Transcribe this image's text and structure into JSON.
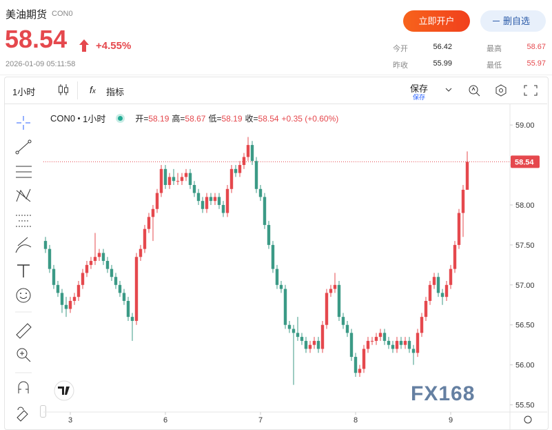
{
  "header": {
    "title": "美油期货",
    "code": "CON0",
    "price": 58.54,
    "change": "+4.55%",
    "time": "2026-01-09 05:11:58"
  },
  "buttons": {
    "open_account": "立即开户",
    "watchlist": "删自选"
  },
  "stats": [
    {
      "label": "今开",
      "value": 56.42
    },
    {
      "label": "最高",
      "value": 58.67
    },
    {
      "label": "昨收",
      "value": 55.99
    },
    {
      "label": "最低",
      "value": 55.97
    }
  ],
  "toolbar": {
    "interval": "1小时",
    "indicators": "指标",
    "save": "保存",
    "save_sub": "保存"
  },
  "watermark": "FX168",
  "chart_data": {
    "type": "candlestick",
    "symbol": "CON0",
    "interval": "1小时",
    "ohlc_legend": [
      {
        "label": "开=",
        "value": 58.19
      },
      {
        "label": "高=",
        "value": 58.67
      },
      {
        "label": "低=",
        "value": 58.19
      },
      {
        "label": "收=",
        "value": 58.54
      }
    ],
    "change_text": "+0.35 (+0.60%)",
    "last_price": 58.54,
    "up_color": "#e5484d",
    "down_color": "#3b9a86",
    "ylim": [
      55.41,
      59.26
    ],
    "yticks": [
      {
        "value": 55.5,
        "label": "55.50"
      },
      {
        "value": 56,
        "label": "56.00"
      },
      {
        "value": 56.5,
        "label": "56.50"
      },
      {
        "value": 57,
        "label": "57.00"
      },
      {
        "value": 57.5,
        "label": "57.50"
      },
      {
        "value": 58,
        "label": "58.00"
      },
      {
        "value": 58.5,
        "label": "58.50"
      },
      {
        "value": 59,
        "label": "59.00"
      }
    ],
    "categories": [
      null,
      null,
      null,
      null,
      null,
      null,
      "3",
      null,
      null,
      null,
      null,
      null,
      null,
      null,
      null,
      null,
      null,
      null,
      null,
      null,
      null,
      null,
      null,
      null,
      null,
      null,
      null,
      null,
      null,
      "6",
      null,
      null,
      null,
      null,
      null,
      null,
      null,
      null,
      null,
      null,
      null,
      null,
      null,
      null,
      null,
      null,
      null,
      null,
      null,
      null,
      null,
      null,
      "7",
      null,
      null,
      null,
      null,
      null,
      null,
      null,
      null,
      null,
      null,
      null,
      null,
      null,
      null,
      null,
      null,
      null,
      null,
      null,
      null,
      null,
      null,
      "8",
      null,
      null,
      null,
      null,
      null,
      null,
      null,
      null,
      null,
      null,
      null,
      null,
      null,
      null,
      null,
      null,
      null,
      null,
      null,
      null,
      null,
      null,
      "9",
      null,
      null,
      null,
      null
    ],
    "ohlc": [
      [
        57.55,
        57.6,
        57.4,
        57.45
      ],
      [
        57.45,
        57.5,
        57.15,
        57.2
      ],
      [
        57.2,
        57.25,
        56.95,
        57.0
      ],
      [
        57.0,
        57.05,
        56.85,
        56.9
      ],
      [
        56.9,
        56.95,
        56.65,
        56.75
      ],
      [
        56.75,
        56.85,
        56.6,
        56.7
      ],
      [
        56.7,
        56.85,
        56.65,
        56.8
      ],
      [
        56.8,
        56.9,
        56.75,
        56.85
      ],
      [
        56.85,
        57.05,
        56.8,
        57.0
      ],
      [
        57.0,
        57.2,
        56.95,
        57.15
      ],
      [
        57.15,
        57.3,
        57.1,
        57.25
      ],
      [
        57.25,
        57.35,
        57.2,
        57.3
      ],
      [
        57.3,
        57.65,
        57.25,
        57.35
      ],
      [
        57.35,
        57.45,
        57.3,
        57.4
      ],
      [
        57.4,
        57.45,
        57.25,
        57.3
      ],
      [
        57.3,
        57.35,
        57.15,
        57.2
      ],
      [
        57.2,
        57.25,
        57.05,
        57.1
      ],
      [
        57.1,
        57.15,
        56.95,
        57.0
      ],
      [
        57.0,
        57.05,
        56.85,
        56.9
      ],
      [
        56.9,
        56.95,
        56.75,
        56.8
      ],
      [
        56.8,
        56.85,
        56.55,
        56.6
      ],
      [
        56.6,
        56.65,
        56.3,
        56.55
      ],
      [
        56.55,
        57.4,
        56.5,
        57.35
      ],
      [
        57.35,
        57.5,
        57.3,
        57.45
      ],
      [
        57.45,
        57.75,
        57.4,
        57.7
      ],
      [
        57.7,
        57.9,
        57.65,
        57.85
      ],
      [
        57.85,
        58.0,
        57.55,
        57.95
      ],
      [
        57.95,
        58.2,
        57.9,
        58.15
      ],
      [
        58.15,
        58.5,
        58.1,
        58.45
      ],
      [
        58.45,
        58.5,
        58.2,
        58.25
      ],
      [
        58.25,
        58.4,
        58.2,
        58.35
      ],
      [
        58.35,
        58.45,
        58.25,
        58.3
      ],
      [
        58.3,
        58.4,
        58.25,
        58.3
      ],
      [
        58.3,
        58.4,
        58.25,
        58.35
      ],
      [
        58.35,
        58.45,
        58.3,
        58.4
      ],
      [
        58.4,
        58.45,
        58.2,
        58.25
      ],
      [
        58.25,
        58.3,
        58.1,
        58.15
      ],
      [
        58.15,
        58.2,
        58.0,
        58.05
      ],
      [
        58.05,
        58.1,
        57.9,
        57.95
      ],
      [
        57.95,
        58.15,
        57.9,
        58.1
      ],
      [
        58.1,
        58.15,
        58.0,
        58.05
      ],
      [
        58.05,
        58.15,
        58.0,
        58.1
      ],
      [
        58.1,
        58.15,
        57.95,
        58.0
      ],
      [
        58.0,
        58.05,
        57.85,
        57.9
      ],
      [
        57.9,
        58.25,
        57.85,
        58.2
      ],
      [
        58.2,
        58.5,
        58.15,
        58.45
      ],
      [
        58.45,
        58.5,
        58.35,
        58.4
      ],
      [
        58.4,
        58.55,
        58.35,
        58.5
      ],
      [
        58.5,
        58.65,
        58.45,
        58.6
      ],
      [
        58.6,
        58.85,
        58.55,
        58.75
      ],
      [
        58.75,
        58.8,
        58.5,
        58.55
      ],
      [
        58.55,
        58.6,
        58.15,
        58.2
      ],
      [
        58.2,
        58.25,
        58.05,
        58.1
      ],
      [
        58.1,
        58.15,
        57.7,
        57.75
      ],
      [
        57.75,
        57.8,
        57.45,
        57.5
      ],
      [
        57.5,
        57.55,
        57.15,
        57.2
      ],
      [
        57.2,
        57.25,
        56.95,
        57.0
      ],
      [
        57.0,
        57.05,
        56.9,
        56.95
      ],
      [
        56.95,
        57.0,
        56.45,
        56.5
      ],
      [
        56.5,
        56.55,
        56.4,
        56.45
      ],
      [
        56.45,
        56.5,
        55.75,
        56.4
      ],
      [
        56.4,
        56.6,
        56.3,
        56.35
      ],
      [
        56.35,
        56.4,
        56.25,
        56.3
      ],
      [
        56.3,
        56.35,
        56.15,
        56.2
      ],
      [
        56.2,
        56.3,
        56.15,
        56.25
      ],
      [
        56.25,
        56.35,
        56.2,
        56.3
      ],
      [
        56.3,
        56.35,
        56.15,
        56.2
      ],
      [
        56.2,
        56.55,
        56.15,
        56.5
      ],
      [
        56.5,
        56.95,
        56.45,
        56.9
      ],
      [
        56.9,
        57.0,
        56.85,
        56.95
      ],
      [
        56.95,
        57.15,
        56.9,
        57.0
      ],
      [
        57.0,
        57.05,
        56.55,
        56.6
      ],
      [
        56.6,
        56.65,
        56.45,
        56.5
      ],
      [
        56.5,
        56.55,
        56.35,
        56.4
      ],
      [
        56.4,
        56.45,
        56.05,
        56.1
      ],
      [
        56.1,
        56.15,
        55.85,
        55.9
      ],
      [
        55.9,
        56.0,
        55.85,
        55.95
      ],
      [
        55.95,
        56.25,
        55.9,
        56.2
      ],
      [
        56.2,
        56.35,
        56.15,
        56.3
      ],
      [
        56.3,
        56.35,
        56.25,
        56.3
      ],
      [
        56.3,
        56.4,
        56.25,
        56.35
      ],
      [
        56.35,
        56.45,
        56.3,
        56.4
      ],
      [
        56.4,
        56.45,
        56.25,
        56.3
      ],
      [
        56.3,
        56.35,
        56.2,
        56.25
      ],
      [
        56.25,
        56.3,
        56.15,
        56.2
      ],
      [
        56.2,
        56.35,
        56.15,
        56.3
      ],
      [
        56.3,
        56.35,
        56.2,
        56.25
      ],
      [
        56.25,
        56.35,
        56.2,
        56.3
      ],
      [
        56.3,
        56.35,
        56.15,
        56.2
      ],
      [
        56.2,
        56.25,
        56.0,
        56.15
      ],
      [
        56.15,
        56.45,
        56.1,
        56.4
      ],
      [
        56.4,
        56.65,
        56.35,
        56.6
      ],
      [
        56.6,
        56.85,
        56.55,
        56.8
      ],
      [
        56.8,
        57.05,
        56.75,
        57.0
      ],
      [
        57.0,
        57.15,
        56.95,
        57.1
      ],
      [
        57.1,
        57.15,
        56.85,
        56.9
      ],
      [
        56.9,
        56.95,
        56.75,
        56.85
      ],
      [
        56.85,
        57.05,
        56.8,
        57.0
      ],
      [
        57.0,
        57.25,
        56.95,
        57.2
      ],
      [
        57.2,
        57.55,
        57.15,
        57.5
      ],
      [
        57.5,
        57.95,
        57.45,
        57.9
      ],
      [
        57.9,
        58.25,
        57.6,
        58.19
      ],
      [
        58.19,
        58.67,
        58.19,
        58.54
      ]
    ]
  }
}
